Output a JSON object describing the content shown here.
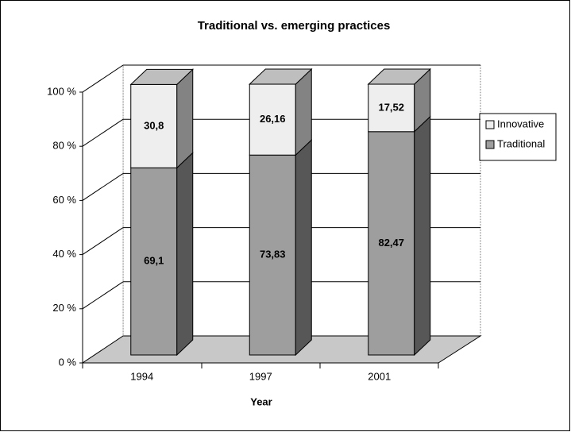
{
  "chart_data": {
    "type": "bar3d_stacked",
    "title": "Traditional vs. emerging practices",
    "x_label": "Year",
    "categories": [
      "1994",
      "1997",
      "2001"
    ],
    "series": [
      {
        "name": "Innovative",
        "color": "#eeeeee",
        "values": [
          30.8,
          26.16,
          17.52
        ],
        "value_labels": [
          "30,8",
          "26,16",
          "17,52"
        ]
      },
      {
        "name": "Traditional",
        "color": "#9e9e9e",
        "values": [
          69.1,
          73.83,
          82.47
        ],
        "value_labels": [
          "69,1",
          "73,83",
          "82,47"
        ]
      }
    ],
    "ylim": [
      0,
      100
    ],
    "yticks": [
      {
        "value": 0,
        "label": "0 %"
      },
      {
        "value": 20,
        "label": "20 %"
      },
      {
        "value": 40,
        "label": "40 %"
      },
      {
        "value": 60,
        "label": "60 %"
      },
      {
        "value": 80,
        "label": "80 %"
      },
      {
        "value": 100,
        "label": "100 %"
      }
    ],
    "grid": true,
    "legend": "right"
  }
}
